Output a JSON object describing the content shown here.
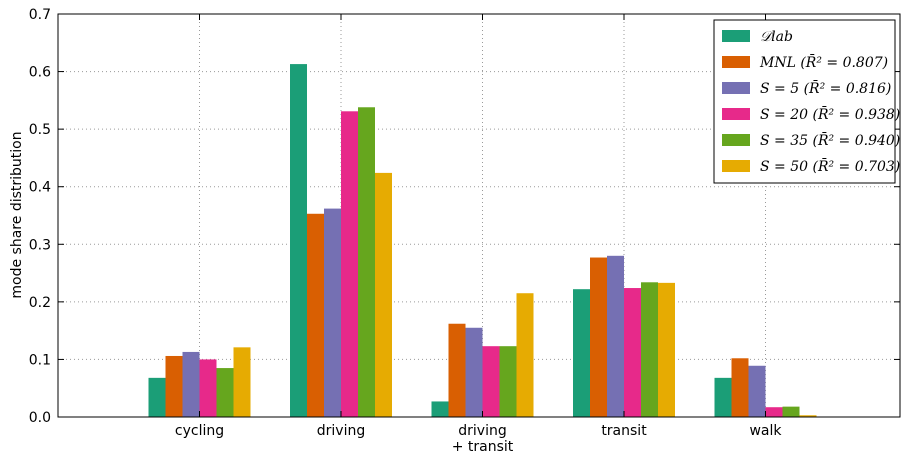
{
  "chart_data": {
    "type": "bar",
    "ylabel": "mode share distribution",
    "xlabel": "",
    "ylim": [
      0,
      0.7
    ],
    "yticks": [
      "0.0",
      "0.1",
      "0.2",
      "0.3",
      "0.4",
      "0.5",
      "0.6",
      "0.7"
    ],
    "grid": true,
    "legend_position": "top-right",
    "categories": [
      "cycling",
      "driving",
      "driving\n+ transit",
      "transit",
      "walk"
    ],
    "series": [
      {
        "name": "𝒟lab",
        "color": "#1b9e77",
        "values": [
          0.068,
          0.613,
          0.027,
          0.222,
          0.068
        ]
      },
      {
        "name": "MNL (R̄² = 0.807)",
        "color": "#d95f02",
        "values": [
          0.106,
          0.353,
          0.162,
          0.277,
          0.102
        ]
      },
      {
        "name": "S = 5 (R̄² = 0.816)",
        "color": "#7570b3",
        "values": [
          0.113,
          0.362,
          0.155,
          0.28,
          0.089
        ]
      },
      {
        "name": "S = 20 (R̄² = 0.938)",
        "color": "#e7298a",
        "values": [
          0.1,
          0.531,
          0.123,
          0.224,
          0.017
        ]
      },
      {
        "name": "S = 35 (R̄² = 0.940)",
        "color": "#66a61e",
        "values": [
          0.085,
          0.538,
          0.123,
          0.234,
          0.018
        ]
      },
      {
        "name": "S = 50 (R̄² = 0.703)",
        "color": "#e6ab02",
        "values": [
          0.121,
          0.424,
          0.215,
          0.233,
          0.003
        ]
      }
    ]
  }
}
